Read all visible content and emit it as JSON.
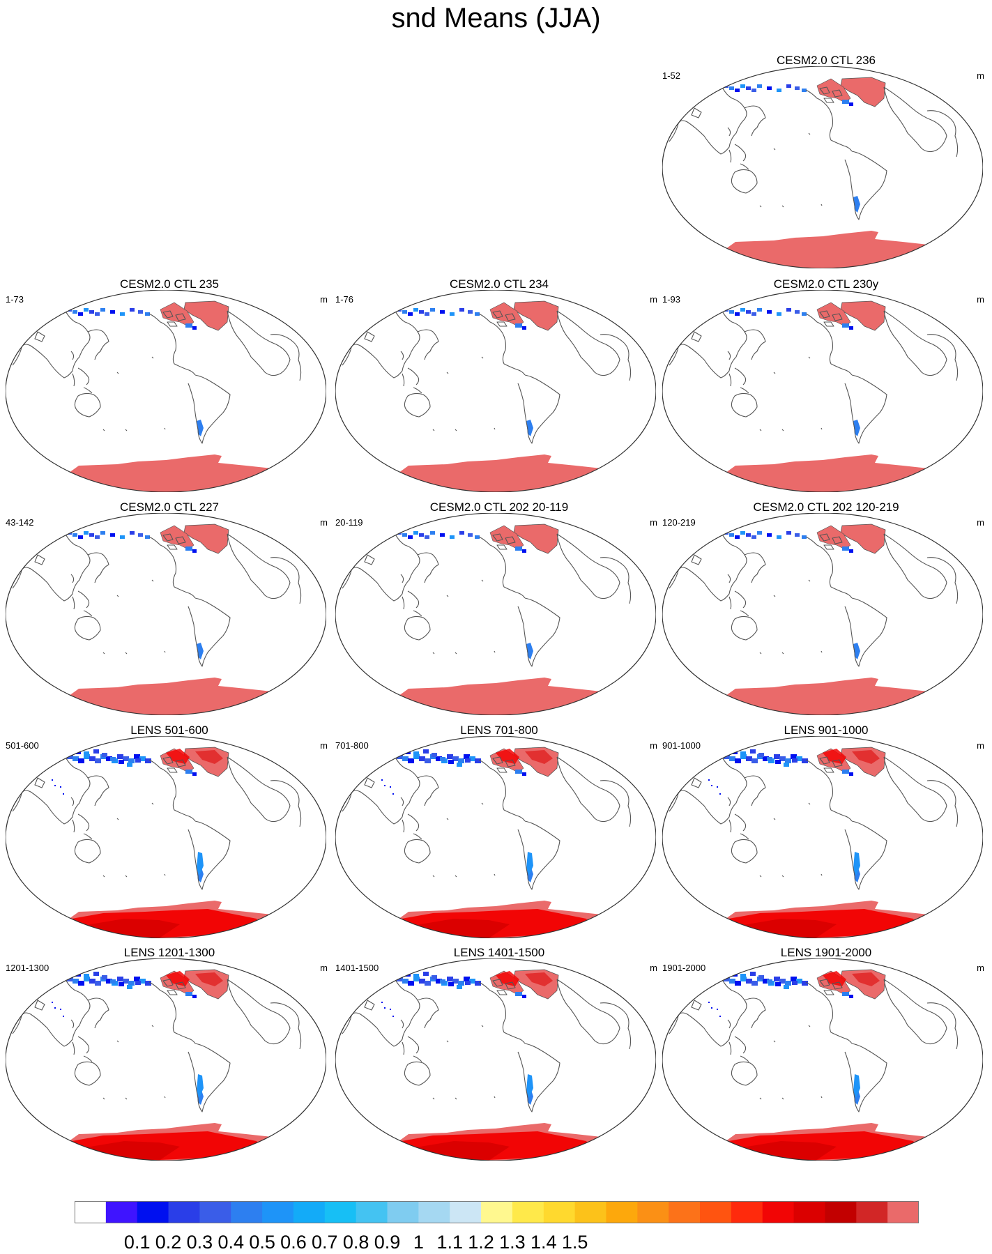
{
  "title": "snd Means (JJA)",
  "panels": [
    {
      "title": "CESM2.0 CTL 236",
      "range": "1-52",
      "unit": "m",
      "lens": false
    },
    {
      "title": "CESM2.0 CTL 235",
      "range": "1-73",
      "unit": "m",
      "lens": false
    },
    {
      "title": "CESM2.0 CTL 234",
      "range": "1-76",
      "unit": "m",
      "lens": false
    },
    {
      "title": "CESM2.0 CTL 230y",
      "range": "1-93",
      "unit": "m",
      "lens": false
    },
    {
      "title": "CESM2.0 CTL 227",
      "range": "43-142",
      "unit": "m",
      "lens": false
    },
    {
      "title": "CESM2.0 CTL 202 20-119",
      "range": "20-119",
      "unit": "m",
      "lens": false
    },
    {
      "title": "CESM2.0 CTL 202 120-219",
      "range": "120-219",
      "unit": "m",
      "lens": false
    },
    {
      "title": "LENS 501-600",
      "range": "501-600",
      "unit": "m",
      "lens": true
    },
    {
      "title": "LENS 701-800",
      "range": "701-800",
      "unit": "m",
      "lens": true
    },
    {
      "title": "LENS 901-1000",
      "range": "901-1000",
      "unit": "m",
      "lens": true
    },
    {
      "title": "LENS 1201-1300",
      "range": "1201-1300",
      "unit": "m",
      "lens": true
    },
    {
      "title": "LENS 1401-1500",
      "range": "1401-1500",
      "unit": "m",
      "lens": true
    },
    {
      "title": "LENS 1901-2000",
      "range": "1901-2000",
      "unit": "m",
      "lens": true
    }
  ],
  "colorbar": {
    "colors": [
      "#ffffff",
      "#3f14ff",
      "#0010f0",
      "#2a3ee8",
      "#3a5de8",
      "#2d7ff0",
      "#1e94f8",
      "#13abf8",
      "#17bff5",
      "#44c3f2",
      "#7fccf0",
      "#a5d8f2",
      "#cce6f5",
      "#fff88f",
      "#ffe94a",
      "#ffd92e",
      "#fcc21a",
      "#fda80c",
      "#fb9015",
      "#fc7219",
      "#ff5410",
      "#ff2a0c",
      "#f20505",
      "#db0000",
      "#c20000",
      "#d22626",
      "#ea6a6a"
    ],
    "labels": [
      "0.1",
      "0.2",
      "0.3",
      "0.4",
      "0.5",
      "0.6",
      "0.7",
      "0.8",
      "0.9",
      "1",
      "1.1",
      "1.2",
      "1.3",
      "1.4",
      "1.5"
    ]
  }
}
